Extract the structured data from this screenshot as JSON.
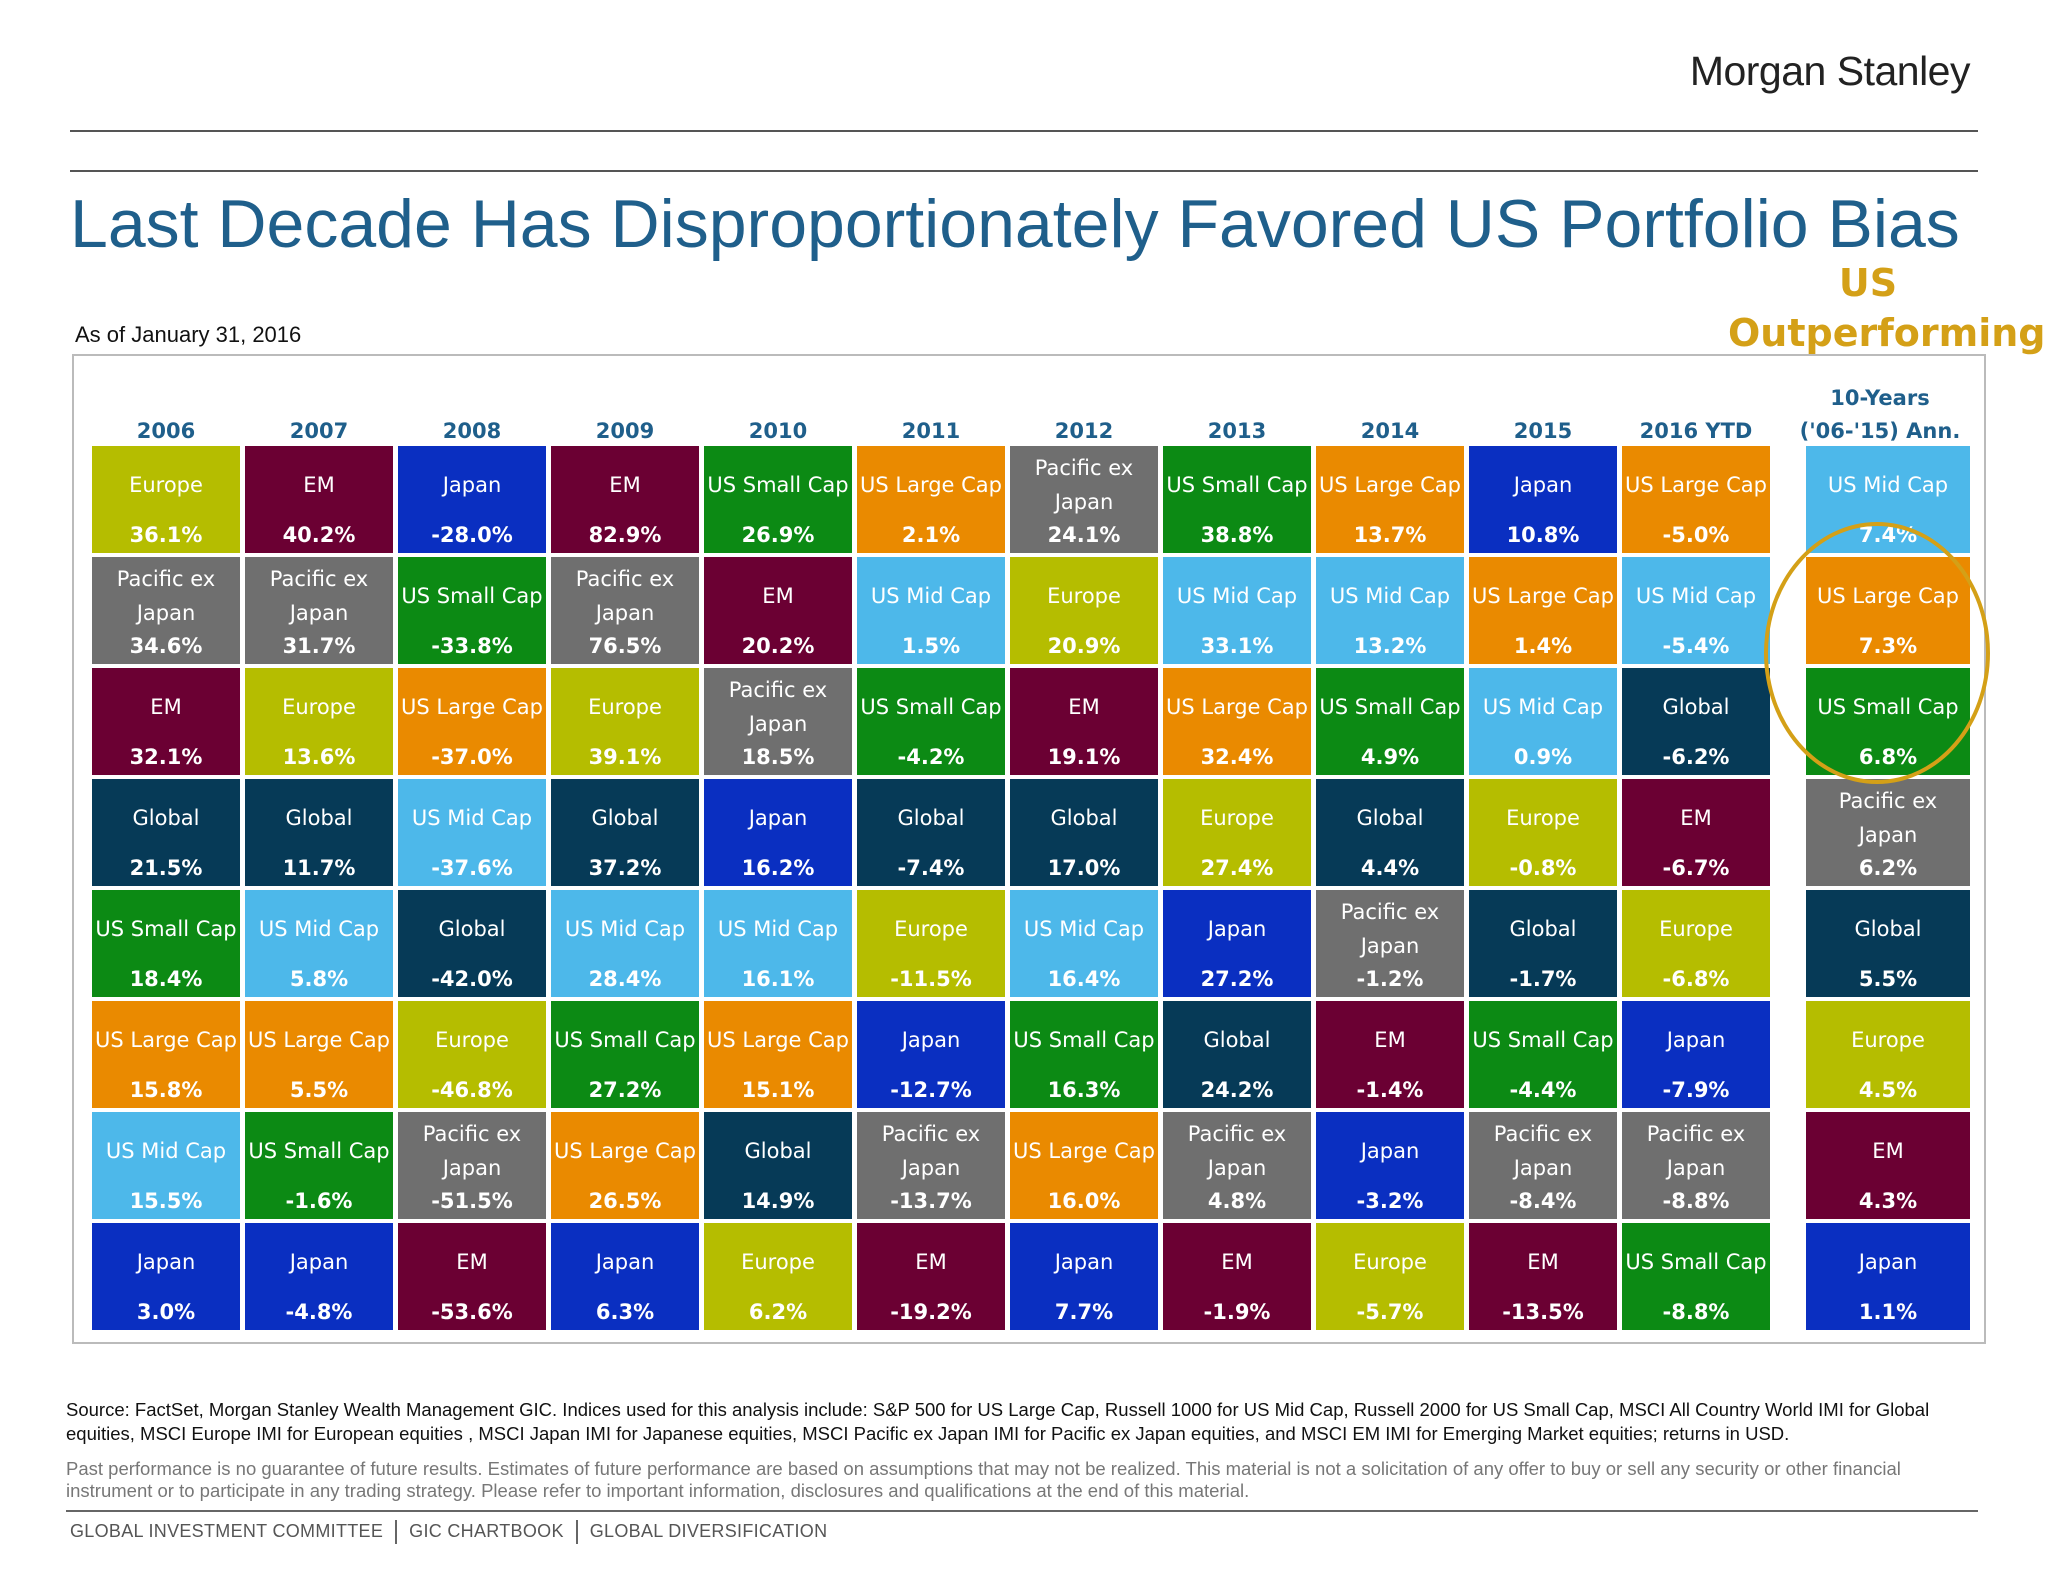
{
  "header": {
    "brand": "Morgan Stanley",
    "title": "Last Decade Has Disproportionately Favored US Portfolio Bias",
    "callout_line1": "US",
    "callout_line2": "Outperforming",
    "as_of": "As of January 31, 2016"
  },
  "colors": {
    "Europe": "#b5bd00",
    "EM": "#6b0033",
    "Japan": "#0a2fc1",
    "Pacific ex Japan": "#6f6f6f",
    "US Small Cap": "#0c8a14",
    "US Large Cap": "#ea8a00",
    "US Mid Cap": "#4db8ea",
    "Global": "#063a57",
    "highlight": "#d4a017",
    "title": "#1f5f8b"
  },
  "chart_data": {
    "type": "table",
    "title": "Last Decade Has Disproportionately Favored US Portfolio Bias",
    "columns": [
      {
        "header": "2006",
        "cells": [
          {
            "asset": "Europe",
            "value": "36.1%"
          },
          {
            "asset": "Pacific ex Japan",
            "value": "34.6%"
          },
          {
            "asset": "EM",
            "value": "32.1%"
          },
          {
            "asset": "Global",
            "value": "21.5%"
          },
          {
            "asset": "US Small Cap",
            "value": "18.4%"
          },
          {
            "asset": "US Large Cap",
            "value": "15.8%"
          },
          {
            "asset": "US Mid Cap",
            "value": "15.5%"
          },
          {
            "asset": "Japan",
            "value": "3.0%"
          }
        ]
      },
      {
        "header": "2007",
        "cells": [
          {
            "asset": "EM",
            "value": "40.2%"
          },
          {
            "asset": "Pacific ex Japan",
            "value": "31.7%"
          },
          {
            "asset": "Europe",
            "value": "13.6%"
          },
          {
            "asset": "Global",
            "value": "11.7%"
          },
          {
            "asset": "US Mid Cap",
            "value": "5.8%"
          },
          {
            "asset": "US Large Cap",
            "value": "5.5%"
          },
          {
            "asset": "US Small Cap",
            "value": "-1.6%"
          },
          {
            "asset": "Japan",
            "value": "-4.8%"
          }
        ]
      },
      {
        "header": "2008",
        "cells": [
          {
            "asset": "Japan",
            "value": "-28.0%"
          },
          {
            "asset": "US Small Cap",
            "value": "-33.8%"
          },
          {
            "asset": "US Large Cap",
            "value": "-37.0%"
          },
          {
            "asset": "US Mid Cap",
            "value": "-37.6%"
          },
          {
            "asset": "Global",
            "value": "-42.0%"
          },
          {
            "asset": "Europe",
            "value": "-46.8%"
          },
          {
            "asset": "Pacific ex Japan",
            "value": "-51.5%"
          },
          {
            "asset": "EM",
            "value": "-53.6%"
          }
        ]
      },
      {
        "header": "2009",
        "cells": [
          {
            "asset": "EM",
            "value": "82.9%"
          },
          {
            "asset": "Pacific ex Japan",
            "value": "76.5%"
          },
          {
            "asset": "Europe",
            "value": "39.1%"
          },
          {
            "asset": "Global",
            "value": "37.2%"
          },
          {
            "asset": "US Mid Cap",
            "value": "28.4%"
          },
          {
            "asset": "US Small Cap",
            "value": "27.2%"
          },
          {
            "asset": "US Large Cap",
            "value": "26.5%"
          },
          {
            "asset": "Japan",
            "value": "6.3%"
          }
        ]
      },
      {
        "header": "2010",
        "cells": [
          {
            "asset": "US Small Cap",
            "value": "26.9%"
          },
          {
            "asset": "EM",
            "value": "20.2%"
          },
          {
            "asset": "Pacific ex Japan",
            "value": "18.5%"
          },
          {
            "asset": "Japan",
            "value": "16.2%"
          },
          {
            "asset": "US Mid Cap",
            "value": "16.1%"
          },
          {
            "asset": "US Large Cap",
            "value": "15.1%"
          },
          {
            "asset": "Global",
            "value": "14.9%"
          },
          {
            "asset": "Europe",
            "value": "6.2%"
          }
        ]
      },
      {
        "header": "2011",
        "cells": [
          {
            "asset": "US Large Cap",
            "value": "2.1%"
          },
          {
            "asset": "US Mid Cap",
            "value": "1.5%"
          },
          {
            "asset": "US Small Cap",
            "value": "-4.2%"
          },
          {
            "asset": "Global",
            "value": "-7.4%"
          },
          {
            "asset": "Europe",
            "value": "-11.5%"
          },
          {
            "asset": "Japan",
            "value": "-12.7%"
          },
          {
            "asset": "Pacific ex Japan",
            "value": "-13.7%"
          },
          {
            "asset": "EM",
            "value": "-19.2%"
          }
        ]
      },
      {
        "header": "2012",
        "cells": [
          {
            "asset": "Pacific ex Japan",
            "value": "24.1%"
          },
          {
            "asset": "Europe",
            "value": "20.9%"
          },
          {
            "asset": "EM",
            "value": "19.1%"
          },
          {
            "asset": "Global",
            "value": "17.0%"
          },
          {
            "asset": "US Mid Cap",
            "value": "16.4%"
          },
          {
            "asset": "US Small Cap",
            "value": "16.3%"
          },
          {
            "asset": "US Large Cap",
            "value": "16.0%"
          },
          {
            "asset": "Japan",
            "value": "7.7%"
          }
        ]
      },
      {
        "header": "2013",
        "cells": [
          {
            "asset": "US Small Cap",
            "value": "38.8%"
          },
          {
            "asset": "US Mid Cap",
            "value": "33.1%"
          },
          {
            "asset": "US Large Cap",
            "value": "32.4%"
          },
          {
            "asset": "Europe",
            "value": "27.4%"
          },
          {
            "asset": "Japan",
            "value": "27.2%"
          },
          {
            "asset": "Global",
            "value": "24.2%"
          },
          {
            "asset": "Pacific ex Japan",
            "value": "4.8%"
          },
          {
            "asset": "EM",
            "value": "-1.9%"
          }
        ]
      },
      {
        "header": "2014",
        "cells": [
          {
            "asset": "US Large Cap",
            "value": "13.7%"
          },
          {
            "asset": "US Mid Cap",
            "value": "13.2%"
          },
          {
            "asset": "US Small Cap",
            "value": "4.9%"
          },
          {
            "asset": "Global",
            "value": "4.4%"
          },
          {
            "asset": "Pacific ex Japan",
            "value": "-1.2%"
          },
          {
            "asset": "EM",
            "value": "-1.4%"
          },
          {
            "asset": "Japan",
            "value": "-3.2%"
          },
          {
            "asset": "Europe",
            "value": "-5.7%"
          }
        ]
      },
      {
        "header": "2015",
        "cells": [
          {
            "asset": "Japan",
            "value": "10.8%"
          },
          {
            "asset": "US Large Cap",
            "value": "1.4%"
          },
          {
            "asset": "US Mid Cap",
            "value": "0.9%"
          },
          {
            "asset": "Europe",
            "value": "-0.8%"
          },
          {
            "asset": "Global",
            "value": "-1.7%"
          },
          {
            "asset": "US Small Cap",
            "value": "-4.4%"
          },
          {
            "asset": "Pacific ex Japan",
            "value": "-8.4%"
          },
          {
            "asset": "EM",
            "value": "-13.5%"
          }
        ]
      },
      {
        "header": "2016 YTD",
        "cells": [
          {
            "asset": "US Large Cap",
            "value": "-5.0%"
          },
          {
            "asset": "US Mid Cap",
            "value": "-5.4%"
          },
          {
            "asset": "Global",
            "value": "-6.2%"
          },
          {
            "asset": "EM",
            "value": "-6.7%"
          },
          {
            "asset": "Europe",
            "value": "-6.8%"
          },
          {
            "asset": "Japan",
            "value": "-7.9%"
          },
          {
            "asset": "Pacific ex Japan",
            "value": "-8.8%"
          },
          {
            "asset": "US Small Cap",
            "value": "-8.8%"
          }
        ]
      },
      {
        "header_line1": "10-Years",
        "header_line2": "('06-'15) Ann.",
        "cells": [
          {
            "asset": "US Mid Cap",
            "value": "7.4%"
          },
          {
            "asset": "US Large Cap",
            "value": "7.3%"
          },
          {
            "asset": "US Small Cap",
            "value": "6.8%"
          },
          {
            "asset": "Pacific ex Japan",
            "value": "6.2%"
          },
          {
            "asset": "Global",
            "value": "5.5%"
          },
          {
            "asset": "Europe",
            "value": "4.5%"
          },
          {
            "asset": "EM",
            "value": "4.3%"
          },
          {
            "asset": "Japan",
            "value": "1.1%"
          }
        ]
      }
    ]
  },
  "footer": {
    "source": "Source: FactSet, Morgan Stanley Wealth Management GIC. Indices used for this analysis include: S&P 500 for US Large Cap, Russell 1000  for US Mid Cap, Russell 2000 for US Small Cap, MSCI All Country World IMI for Global equities, MSCI Europe IMI for European equities , MSCI Japan IMI for Japanese equities, MSCI Pacific ex Japan IMI for Pacific ex Japan equities, and MSCI EM IMI for Emerging Market equities; returns in USD.",
    "disclaimer": "Past performance is no guarantee of future results. Estimates of future performance are based on assumptions that may not be realized. This material is not a solicitation of any offer to buy or sell any security or other financial instrument or to participate in any trading strategy. Please refer to important information, disclosures and qualifications at the end of this material.",
    "crumb1": "GLOBAL INVESTMENT COMMITTEE",
    "crumb2": "GIC CHARTBOOK",
    "crumb3": "GLOBAL DIVERSIFICATION"
  }
}
